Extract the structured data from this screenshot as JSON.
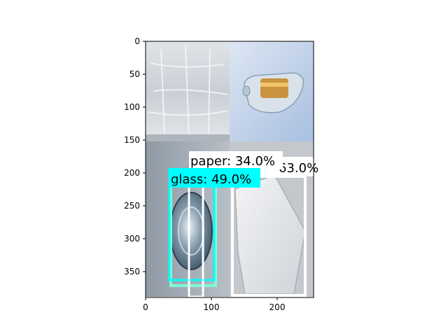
{
  "figure": {
    "x_ticks": [
      "0",
      "100",
      "200"
    ],
    "y_ticks": [
      "0",
      "50",
      "100",
      "150",
      "200",
      "250",
      "300",
      "350"
    ]
  },
  "detections": [
    {
      "label": "glass: 49.0%",
      "color": "#00ffff"
    },
    {
      "label": "paper: 34.0%",
      "color": "#ffffff"
    },
    {
      "label": "63.0%",
      "color": "#ffffff"
    }
  ],
  "colors": {
    "axes": "#000000",
    "glass_box": "#00ffff",
    "glass_box_inner": "#7fffd4",
    "paper_box": "#ffffff"
  }
}
